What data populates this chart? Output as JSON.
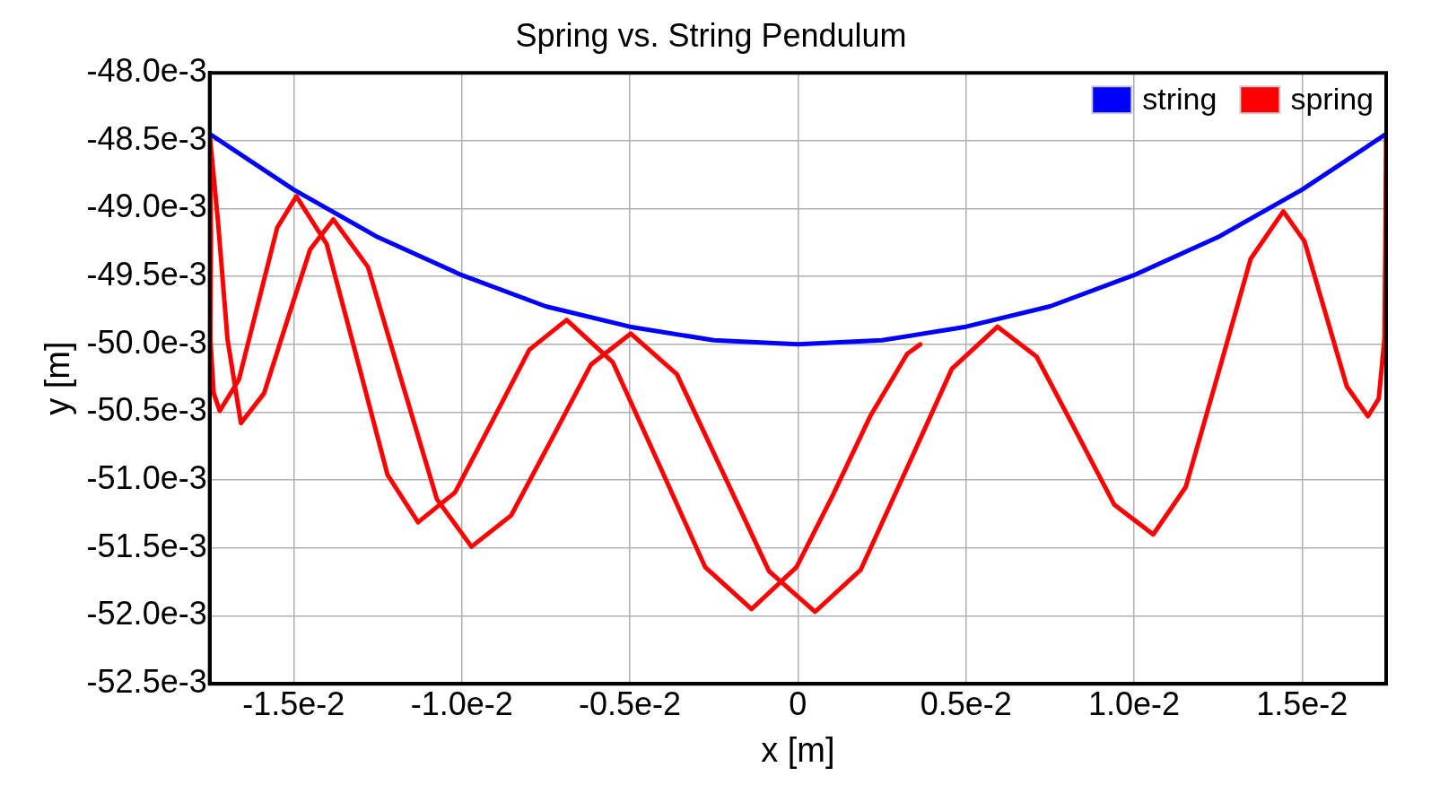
{
  "chart_data": {
    "type": "line",
    "title": "Spring vs. String Pendulum",
    "xlabel": "x [m]",
    "ylabel": "y [m]",
    "xlim": [
      -0.0175,
      0.0175
    ],
    "xticks": [
      {
        "value": -0.015,
        "label": "-1.5e-2"
      },
      {
        "value": -0.01,
        "label": "-1.0e-2"
      },
      {
        "value": -0.005,
        "label": "-0.5e-2"
      },
      0,
      {
        "value": 0.005,
        "label": "0.5e-2"
      },
      {
        "value": 0.01,
        "label": "1.0e-2"
      },
      {
        "value": 0.015,
        "label": "1.5e-2"
      }
    ],
    "ylim": [
      -0.0525,
      -0.048
    ],
    "yticks": [
      {
        "value": -0.048,
        "label": "-48.0e-3"
      },
      {
        "value": -0.0485,
        "label": "-48.5e-3"
      },
      {
        "value": -0.049,
        "label": "-49.0e-3"
      },
      {
        "value": -0.0495,
        "label": "-49.5e-3"
      },
      {
        "value": -0.05,
        "label": "-50.0e-3"
      },
      {
        "value": -0.0505,
        "label": "-50.5e-3"
      },
      {
        "value": -0.051,
        "label": "-51.0e-3"
      },
      {
        "value": -0.0515,
        "label": "-51.5e-3"
      },
      {
        "value": -0.052,
        "label": "-52.0e-3"
      },
      {
        "value": -0.0525,
        "label": "-52.5e-3"
      }
    ],
    "grid": true,
    "legend": "top right",
    "marker": "none",
    "line_style": "solid",
    "series": [
      {
        "name": "string",
        "color": "#0000ff",
        "x": [
          -0.0175,
          -0.015,
          -0.0125,
          -0.01,
          -0.0075,
          -0.005,
          -0.0025,
          0,
          0.0025,
          0.005,
          0.0075,
          0.01,
          0.0125,
          0.015,
          0.0175
        ],
        "values": [
          -0.04845,
          -0.04886,
          -0.04921,
          -0.04949,
          -0.04972,
          -0.04987,
          -0.04997,
          -0.05,
          -0.04997,
          -0.04987,
          -0.04972,
          -0.04949,
          -0.04921,
          -0.04886,
          -0.04845
        ]
      },
      {
        "name": "spring",
        "color": "#ff0000",
        "x": [
          0.0175,
          0.01748,
          0.01745,
          0.01728,
          0.01696,
          0.01633,
          0.0157,
          0.01507,
          0.01444,
          0.01347,
          0.01251,
          0.01154,
          0.01057,
          0.00941,
          0.00826,
          0.0071,
          0.00594,
          0.00458,
          0.00323,
          0.00187,
          0.00051,
          -0.00086,
          -0.00223,
          -0.0036,
          -0.00497,
          -0.00616,
          -0.00734,
          -0.00853,
          -0.00971,
          -0.01074,
          -0.01177,
          -0.01279,
          -0.01382,
          -0.01451,
          -0.0152,
          -0.01588,
          -0.01657,
          -0.01697,
          -0.01725,
          -0.0175,
          -0.01746,
          -0.01748,
          -0.01738,
          -0.0172,
          -0.01663,
          -0.01606,
          -0.01549,
          -0.01492,
          -0.01402,
          -0.01311,
          -0.01221,
          -0.0113,
          -0.0102,
          -0.00909,
          -0.00799,
          -0.00688,
          -0.00551,
          -0.00413,
          -0.00276,
          -0.00138,
          -4e-05,
          0.00106,
          0.00215,
          0.00325,
          0.00364
        ],
        "values": [
          -0.04845,
          -0.0492,
          -0.04996,
          -0.0504,
          -0.05053,
          -0.05031,
          -0.049775,
          -0.04924,
          -0.04902,
          -0.04937,
          -0.05021,
          -0.05105,
          -0.0514,
          -0.05118,
          -0.050635,
          -0.05009,
          -0.04987,
          -0.05018,
          -0.05092,
          -0.05166,
          -0.05197,
          -0.05167,
          -0.050945,
          -0.05022,
          -0.04992,
          -0.05015,
          -0.050705,
          -0.05126,
          -0.05149,
          -0.05114,
          -0.050285,
          -0.04943,
          -0.04908,
          -0.0493,
          -0.04983,
          -0.05036,
          -0.05058,
          -0.04996,
          -0.0491,
          -0.04845,
          -0.0492,
          -0.04996,
          -0.05036,
          -0.05049,
          -0.05026,
          -0.0497,
          -0.04914,
          -0.04891,
          -0.04926,
          -0.05011,
          -0.05096,
          -0.05131,
          -0.05109,
          -0.050565,
          -0.05004,
          -0.04982,
          -0.05013,
          -0.050885,
          -0.05164,
          -0.05195,
          -0.05164,
          -0.0511,
          -0.05053,
          -0.05007,
          -0.05
        ]
      }
    ]
  }
}
